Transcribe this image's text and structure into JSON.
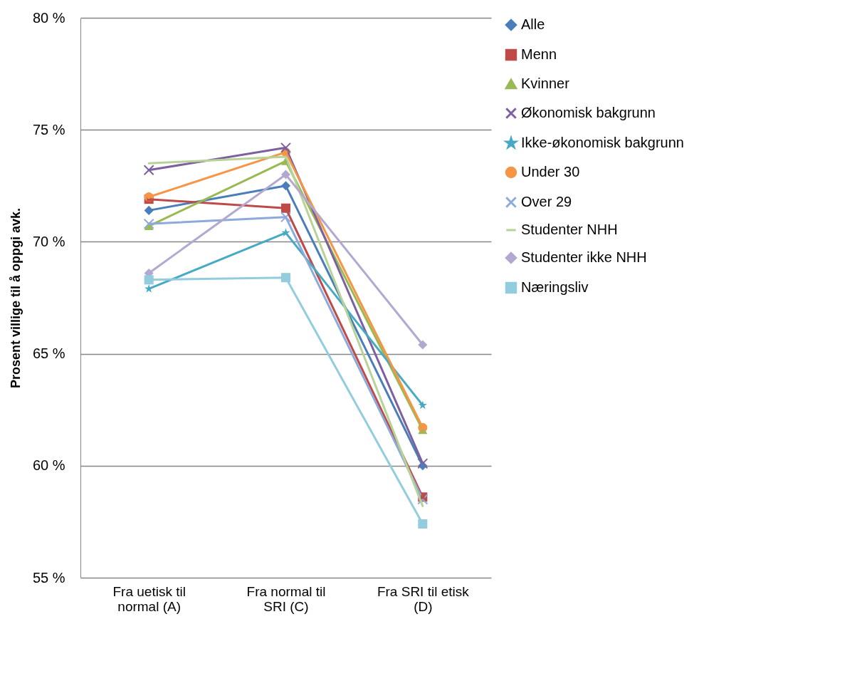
{
  "chart_data": {
    "type": "line",
    "ylabel": "Prosent villige til å oppgi avk.",
    "categories": [
      "Fra uetisk til normal (A)",
      "Fra normal til SRI (C)",
      "Fra SRI til etisk (D)"
    ],
    "ylim": [
      55,
      80
    ],
    "yticks": [
      {
        "value": 55,
        "label": "55 %"
      },
      {
        "value": 60,
        "label": "60 %"
      },
      {
        "value": 65,
        "label": "65 %"
      },
      {
        "value": 70,
        "label": "70 %"
      },
      {
        "value": 75,
        "label": "75 %"
      },
      {
        "value": 80,
        "label": "80 %"
      }
    ],
    "grid": "y",
    "legend": "right",
    "line_style": "solid",
    "series": [
      {
        "name": "Alle",
        "color": "#4a7ebb",
        "marker": "diamond",
        "values": [
          71.4,
          72.5,
          60.0
        ]
      },
      {
        "name": "Menn",
        "color": "#be4b48",
        "marker": "square",
        "values": [
          71.9,
          71.5,
          58.6
        ]
      },
      {
        "name": "Kvinner",
        "color": "#98b954",
        "marker": "triangle",
        "values": [
          70.7,
          73.6,
          61.6
        ]
      },
      {
        "name": "Økonomisk bakgrunn",
        "color": "#7d60a0",
        "marker": "cross",
        "values": [
          73.2,
          74.2,
          60.1
        ]
      },
      {
        "name": "Ikke-økonomisk bakgrunn",
        "color": "#46aac5",
        "marker": "star",
        "values": [
          67.9,
          70.4,
          62.7
        ]
      },
      {
        "name": "Under 30",
        "color": "#f69545",
        "marker": "circle",
        "values": [
          72.0,
          74.0,
          61.7
        ]
      },
      {
        "name": "Over 29",
        "color": "#8ea9db",
        "marker": "cross",
        "values": [
          70.8,
          71.1,
          58.5
        ]
      },
      {
        "name": "Studenter NHH",
        "color": "#b7d397",
        "marker": "none",
        "values": [
          73.5,
          73.8,
          58.2
        ]
      },
      {
        "name": "Studenter ikke NHH",
        "color": "#b3a8cf",
        "marker": "diamond",
        "values": [
          68.6,
          73.0,
          65.4
        ]
      },
      {
        "name": "Næringsliv",
        "color": "#93cddd",
        "marker": "square",
        "values": [
          68.3,
          68.4,
          57.4
        ]
      }
    ]
  }
}
